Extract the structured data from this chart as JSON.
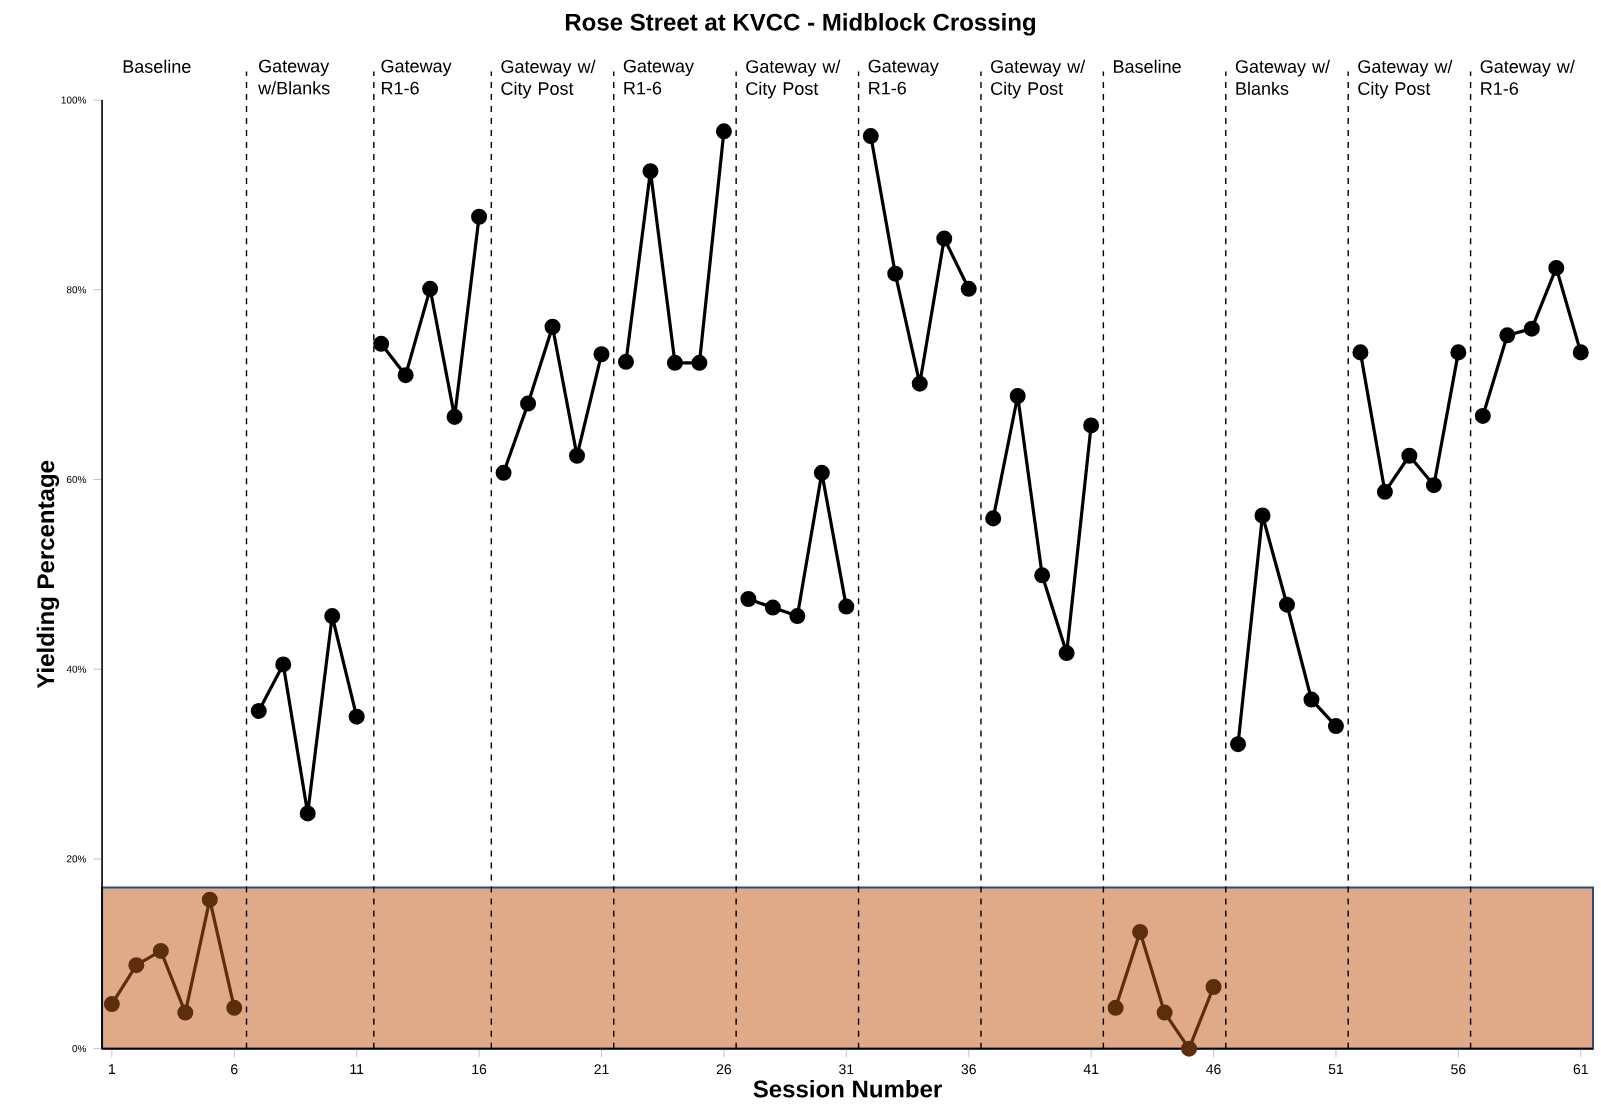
{
  "chart_data": {
    "type": "line",
    "title": "Rose Street at KVCC - Midblock Crossing",
    "xlabel": "Session Number",
    "ylabel": "Yielding Percentage",
    "xlim": [
      0.6,
      61.5
    ],
    "ylim": [
      0,
      100
    ],
    "xticks": [
      1,
      6,
      11,
      16,
      21,
      26,
      31,
      36,
      41,
      46,
      51,
      56,
      61
    ],
    "yticks": [
      {
        "value": 0,
        "label": "0%"
      },
      {
        "value": 20,
        "label": "20%"
      },
      {
        "value": 40,
        "label": "40%"
      },
      {
        "value": 60,
        "label": "60%"
      },
      {
        "value": 80,
        "label": "80%"
      },
      {
        "value": 100,
        "label": "100%"
      }
    ],
    "marker": "circle",
    "line_style": "solid",
    "series": [
      {
        "color": "#5c2e0e",
        "x": [
          1,
          2,
          3,
          4,
          5,
          6
        ],
        "values": [
          4.7,
          8.8,
          10.3,
          3.8,
          15.7,
          4.3
        ]
      },
      {
        "color": "#000000",
        "x": [
          7,
          8,
          9,
          10,
          11
        ],
        "values": [
          35.6,
          40.5,
          24.8,
          45.6,
          35.0
        ]
      },
      {
        "color": "#000000",
        "x": [
          12,
          13,
          14,
          15,
          16
        ],
        "values": [
          74.3,
          71.0,
          80.1,
          66.6,
          87.7
        ]
      },
      {
        "color": "#000000",
        "x": [
          17,
          18,
          19,
          20,
          21
        ],
        "values": [
          60.7,
          68.0,
          76.1,
          62.5,
          73.2
        ]
      },
      {
        "color": "#000000",
        "x": [
          22,
          23,
          24,
          25,
          26
        ],
        "values": [
          72.4,
          92.5,
          72.3,
          72.3,
          96.7
        ]
      },
      {
        "color": "#000000",
        "x": [
          27,
          28,
          29,
          30,
          31
        ],
        "values": [
          47.4,
          46.5,
          45.6,
          60.7,
          46.6
        ]
      },
      {
        "color": "#000000",
        "x": [
          32,
          33,
          34,
          35,
          36
        ],
        "values": [
          96.2,
          81.7,
          70.1,
          85.4,
          80.1
        ]
      },
      {
        "color": "#000000",
        "x": [
          37,
          38,
          39,
          40,
          41
        ],
        "values": [
          55.9,
          68.8,
          49.9,
          41.7,
          65.7
        ]
      },
      {
        "color": "#5c2e0e",
        "x": [
          42,
          43,
          44,
          45,
          46
        ],
        "values": [
          4.3,
          12.3,
          3.8,
          0,
          6.5
        ]
      },
      {
        "color": "#000000",
        "x": [
          47,
          48,
          49,
          50,
          51
        ],
        "values": [
          32.1,
          56.2,
          46.8,
          36.8,
          34.0
        ]
      },
      {
        "color": "#000000",
        "x": [
          52,
          53,
          54,
          55,
          56
        ],
        "values": [
          73.4,
          58.7,
          62.5,
          59.4,
          73.4
        ]
      },
      {
        "color": "#000000",
        "x": [
          57,
          58,
          59,
          60,
          61
        ],
        "values": [
          66.7,
          75.2,
          75.9,
          82.3,
          73.4
        ]
      }
    ],
    "ref_lines": [
      {
        "axis": "x",
        "value": 6.5,
        "line_style": "dashed"
      },
      {
        "axis": "x",
        "value": 11.7,
        "line_style": "dashed"
      },
      {
        "axis": "x",
        "value": 16.5,
        "line_style": "dashed"
      },
      {
        "axis": "x",
        "value": 21.5,
        "line_style": "dashed"
      },
      {
        "axis": "x",
        "value": 26.5,
        "line_style": "dashed"
      },
      {
        "axis": "x",
        "value": 31.5,
        "line_style": "dashed"
      },
      {
        "axis": "x",
        "value": 36.5,
        "line_style": "dashed"
      },
      {
        "axis": "x",
        "value": 41.5,
        "line_style": "dashed"
      },
      {
        "axis": "x",
        "value": 46.5,
        "line_style": "dashed"
      },
      {
        "axis": "x",
        "value": 51.5,
        "line_style": "dashed"
      },
      {
        "axis": "x",
        "value": 56.5,
        "line_style": "dashed"
      }
    ],
    "bands": [
      {
        "axis": "y",
        "from": 0,
        "to": 17,
        "color": "#e0aa88"
      }
    ],
    "annotations": [
      "Baseline",
      "Gateway w/Blanks",
      "Gateway R1-6",
      "Gateway w/ City Post",
      "Gateway R1-6",
      "Gateway w/ City Post",
      "Gateway R1-6",
      "Gateway w/ City Post",
      "Baseline",
      "Gateway w/ Blanks",
      "Gateway w/ City Post",
      "Gateway w/ R1-6"
    ]
  }
}
